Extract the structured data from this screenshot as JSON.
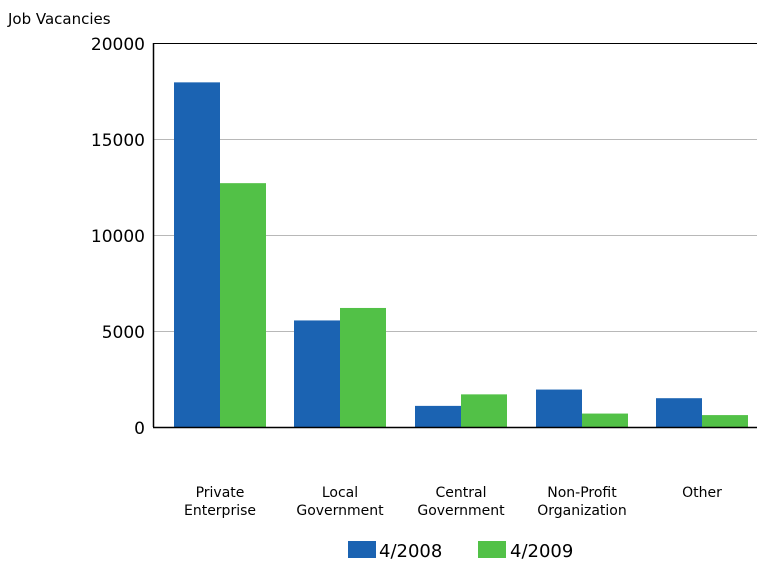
{
  "chart_data": {
    "type": "bar",
    "ylabel": "Job Vacancies",
    "xlabel": "",
    "title": "",
    "ylim": [
      0,
      20000
    ],
    "yticks": [
      0,
      5000,
      10000,
      15000,
      20000
    ],
    "ytick_labels": [
      "0",
      "5000",
      "10000",
      "15000",
      "20000"
    ],
    "grid": true,
    "legend_position": "bottom",
    "categories": [
      [
        "Private",
        "Enterprise"
      ],
      [
        "Local",
        "Government"
      ],
      [
        "Central",
        "Government"
      ],
      [
        "Non-Profit",
        "Organization"
      ],
      [
        "Other"
      ]
    ],
    "series": [
      {
        "name": "4/2008",
        "color": "#1b63b2",
        "values": [
          17950,
          5550,
          1100,
          1950,
          1500
        ]
      },
      {
        "name": "4/2009",
        "color": "#52c147",
        "values": [
          12700,
          6200,
          1700,
          700,
          620
        ]
      }
    ]
  }
}
